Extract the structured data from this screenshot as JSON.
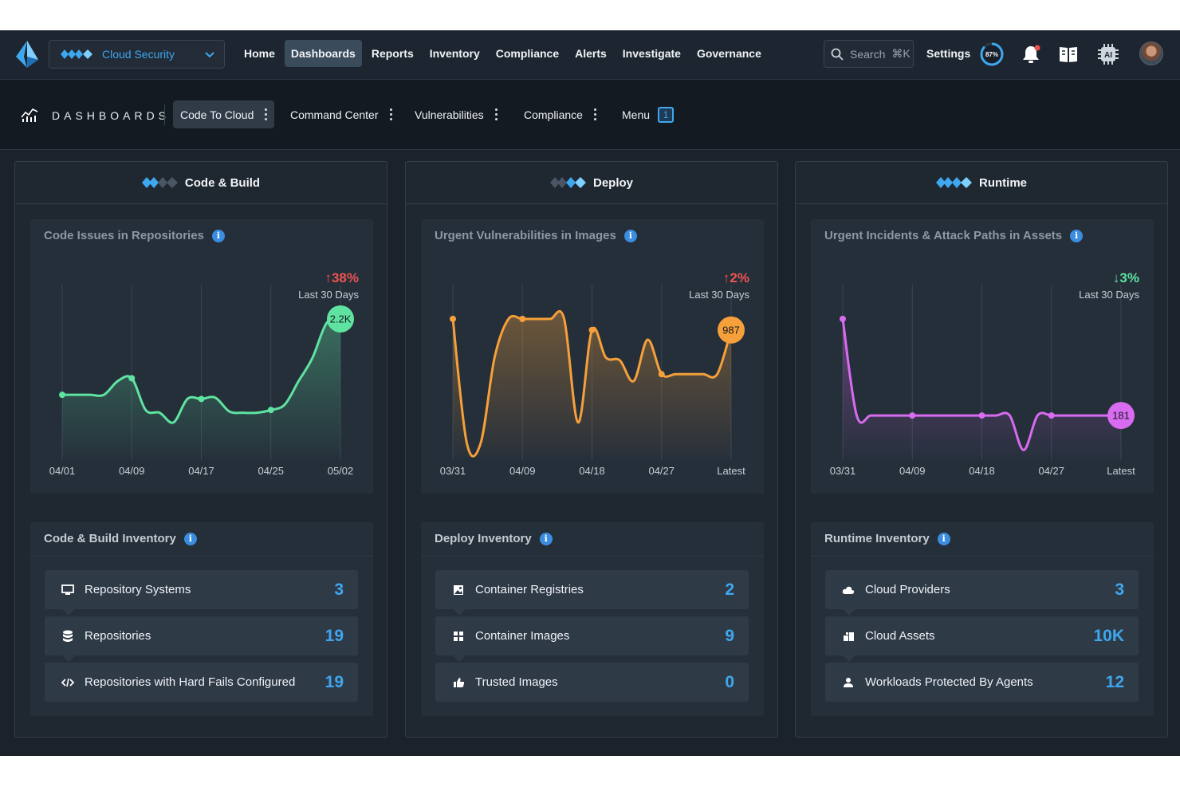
{
  "topnav": {
    "product_label": "Cloud Security",
    "items": [
      "Home",
      "Dashboards",
      "Reports",
      "Inventory",
      "Compliance",
      "Alerts",
      "Investigate",
      "Governance"
    ],
    "active": "Dashboards",
    "search_placeholder": "Search",
    "search_shortcut": "⌘K",
    "settings_label": "Settings",
    "progress_label": "87%",
    "progress": 0.87,
    "ai_label": "AI"
  },
  "dashbar": {
    "title": "DASHBOARDS",
    "tabs": [
      "Code To Cloud",
      "Command Center",
      "Vulnerabilities",
      "Compliance"
    ],
    "active_tab": "Code To Cloud",
    "menu_label": "Menu",
    "menu_badge": "1"
  },
  "columns": [
    {
      "title": "Code & Build",
      "chart": {
        "title": "Code Issues in Repositories",
        "trend": "38%",
        "trend_dir": "up",
        "trend_sub": "Last 30 Days",
        "color": "#5fe3a1",
        "badge": "2.2K"
      },
      "inventory": {
        "title": "Code & Build Inventory",
        "rows": [
          {
            "label": "Repository Systems",
            "value": "3",
            "icon": "monitor-icon"
          },
          {
            "label": "Repositories",
            "value": "19",
            "icon": "database-icon"
          },
          {
            "label": "Repositories with Hard Fails Configured",
            "value": "19",
            "icon": "code-icon"
          }
        ]
      }
    },
    {
      "title": "Deploy",
      "chart": {
        "title": "Urgent Vulnerabilities in Images",
        "trend": "2%",
        "trend_dir": "up",
        "trend_sub": "Last 30 Days",
        "color": "#f5a03a",
        "badge": "987"
      },
      "inventory": {
        "title": "Deploy Inventory",
        "rows": [
          {
            "label": "Container Registries",
            "value": "2",
            "icon": "image-icon"
          },
          {
            "label": "Container Images",
            "value": "9",
            "icon": "grid-icon"
          },
          {
            "label": "Trusted Images",
            "value": "0",
            "icon": "thumbs-up-icon"
          }
        ]
      }
    },
    {
      "title": "Runtime",
      "chart": {
        "title": "Urgent Incidents & Attack Paths in Assets",
        "trend": "3%",
        "trend_dir": "down",
        "trend_sub": "Last 30 Days",
        "color": "#d96bf0",
        "badge": "181"
      },
      "inventory": {
        "title": "Runtime Inventory",
        "rows": [
          {
            "label": "Cloud Providers",
            "value": "3",
            "icon": "cloud-icon"
          },
          {
            "label": "Cloud Assets",
            "value": "10K",
            "icon": "assets-icon"
          },
          {
            "label": "Workloads Protected By Agents",
            "value": "12",
            "icon": "user-icon"
          }
        ]
      }
    }
  ],
  "chart_data": [
    {
      "type": "line",
      "title": "Code Issues in Repositories",
      "x_ticks": [
        "04/01",
        "04/09",
        "04/17",
        "04/25",
        "05/02"
      ],
      "y": [
        0.45,
        0.45,
        0.45,
        0.45,
        0.55,
        0.57,
        0.34,
        0.32,
        0.25,
        0.42,
        0.42,
        0.43,
        0.33,
        0.32,
        0.32,
        0.34,
        0.38,
        0.55,
        0.72,
        0.97,
        1.0
      ],
      "trend": "↑38% Last 30 Days",
      "latest_label": "2.2K"
    },
    {
      "type": "line",
      "title": "Urgent Vulnerabilities in Images",
      "x_ticks": [
        "03/31",
        "04/09",
        "04/18",
        "04/27",
        "Latest"
      ],
      "y": [
        1.0,
        0.1,
        0.1,
        0.72,
        1.0,
        1.0,
        1.0,
        1.0,
        1.0,
        0.25,
        0.92,
        0.72,
        0.7,
        0.55,
        0.85,
        0.6,
        0.6,
        0.6,
        0.6,
        0.6,
        0.92
      ],
      "trend": "↑2% Last 30 Days",
      "latest_label": "987"
    },
    {
      "type": "line",
      "title": "Urgent Incidents & Attack Paths in Assets",
      "x_ticks": [
        "03/31",
        "04/09",
        "04/18",
        "04/27",
        "Latest"
      ],
      "y": [
        1.0,
        0.3,
        0.3,
        0.3,
        0.3,
        0.3,
        0.3,
        0.3,
        0.3,
        0.3,
        0.3,
        0.3,
        0.3,
        0.05,
        0.3,
        0.3,
        0.3,
        0.3,
        0.3,
        0.3,
        0.3
      ],
      "trend": "↓3% Last 30 Days",
      "latest_label": "181"
    }
  ]
}
